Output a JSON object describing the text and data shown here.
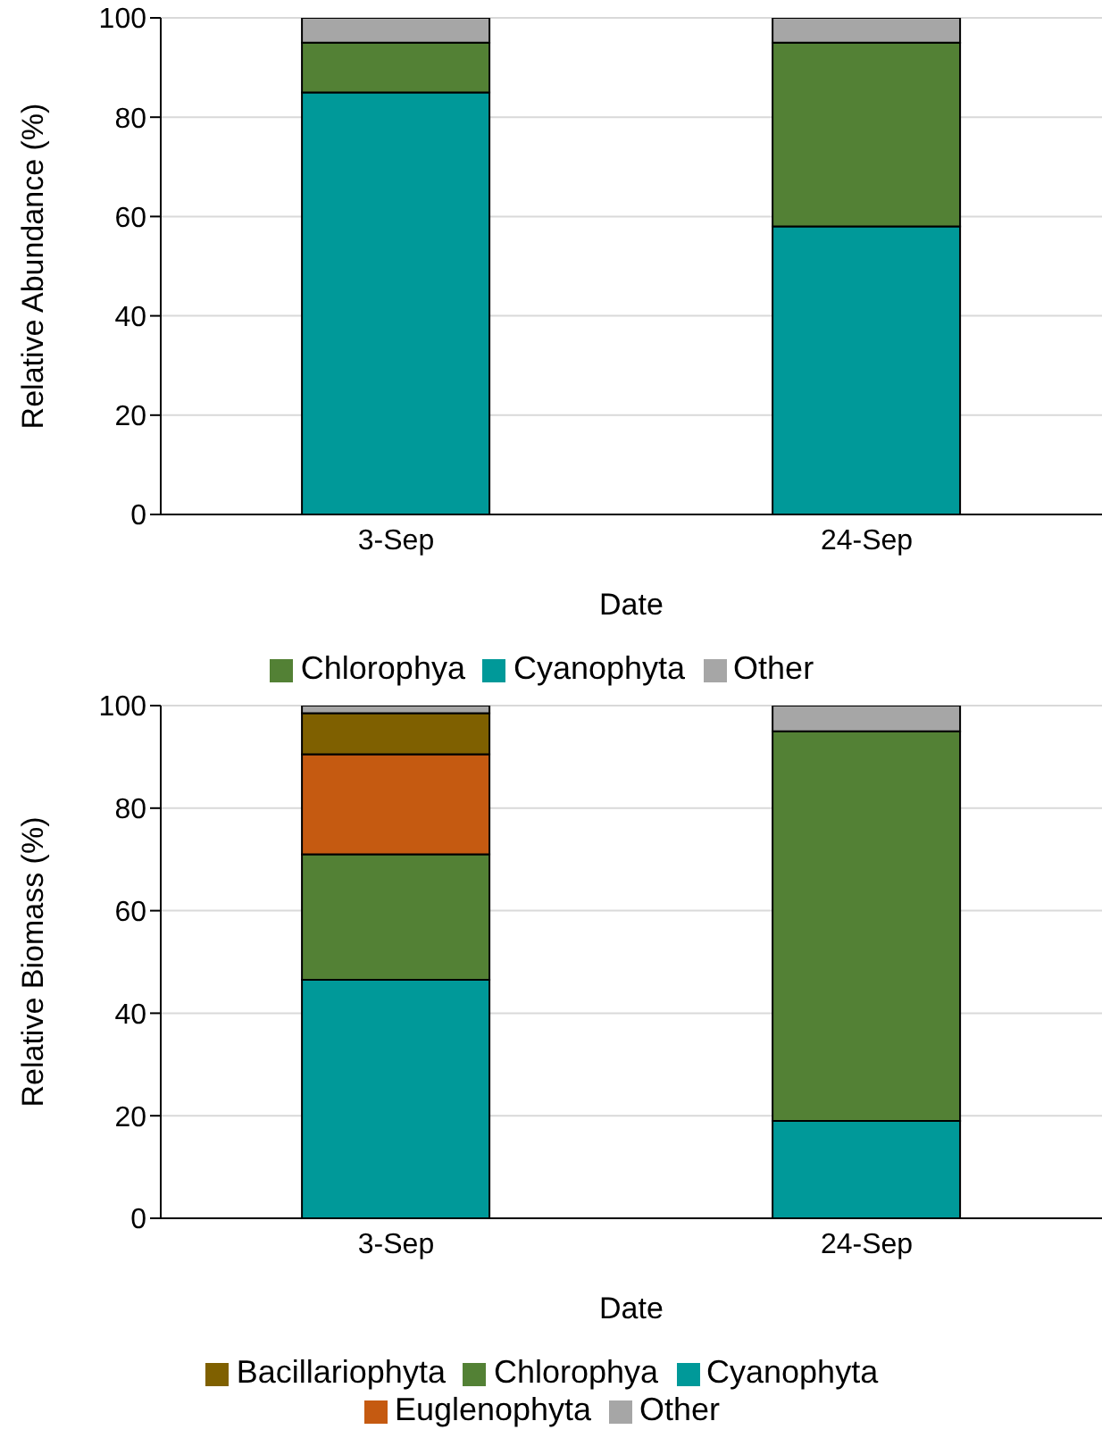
{
  "chart_data": [
    {
      "type": "bar",
      "stacked": true,
      "xlabel": "Date",
      "ylabel": "Relative Abundance (%)",
      "categories": [
        "3-Sep",
        "24-Sep"
      ],
      "series": [
        {
          "name": "Cyanophyta",
          "color": "#009999",
          "values": [
            85,
            58
          ]
        },
        {
          "name": "Chlorophya",
          "color": "#538135",
          "values": [
            10,
            37
          ]
        },
        {
          "name": "Other",
          "color": "#a6a6a6",
          "values": [
            5,
            5
          ]
        }
      ],
      "ylim": [
        0,
        100
      ],
      "yticks": [
        0,
        20,
        40,
        60,
        80,
        100
      ],
      "grid": "y",
      "legend": "bottom"
    },
    {
      "type": "bar",
      "stacked": true,
      "xlabel": "Date",
      "ylabel": "Relative Biomass (%)",
      "categories": [
        "3-Sep",
        "24-Sep"
      ],
      "series": [
        {
          "name": "Cyanophyta",
          "color": "#009999",
          "values": [
            46.5,
            19
          ]
        },
        {
          "name": "Chlorophya",
          "color": "#538135",
          "values": [
            24.5,
            76
          ]
        },
        {
          "name": "Euglenophyta",
          "color": "#c55a11",
          "values": [
            19.5,
            0
          ]
        },
        {
          "name": "Bacillariophyta",
          "color": "#7f6000",
          "values": [
            8,
            0
          ]
        },
        {
          "name": "Other",
          "color": "#a6a6a6",
          "values": [
            1.5,
            5
          ]
        }
      ],
      "ylim": [
        0,
        100
      ],
      "yticks": [
        0,
        20,
        40,
        60,
        80,
        100
      ],
      "grid": "y",
      "legend": "bottom"
    }
  ]
}
